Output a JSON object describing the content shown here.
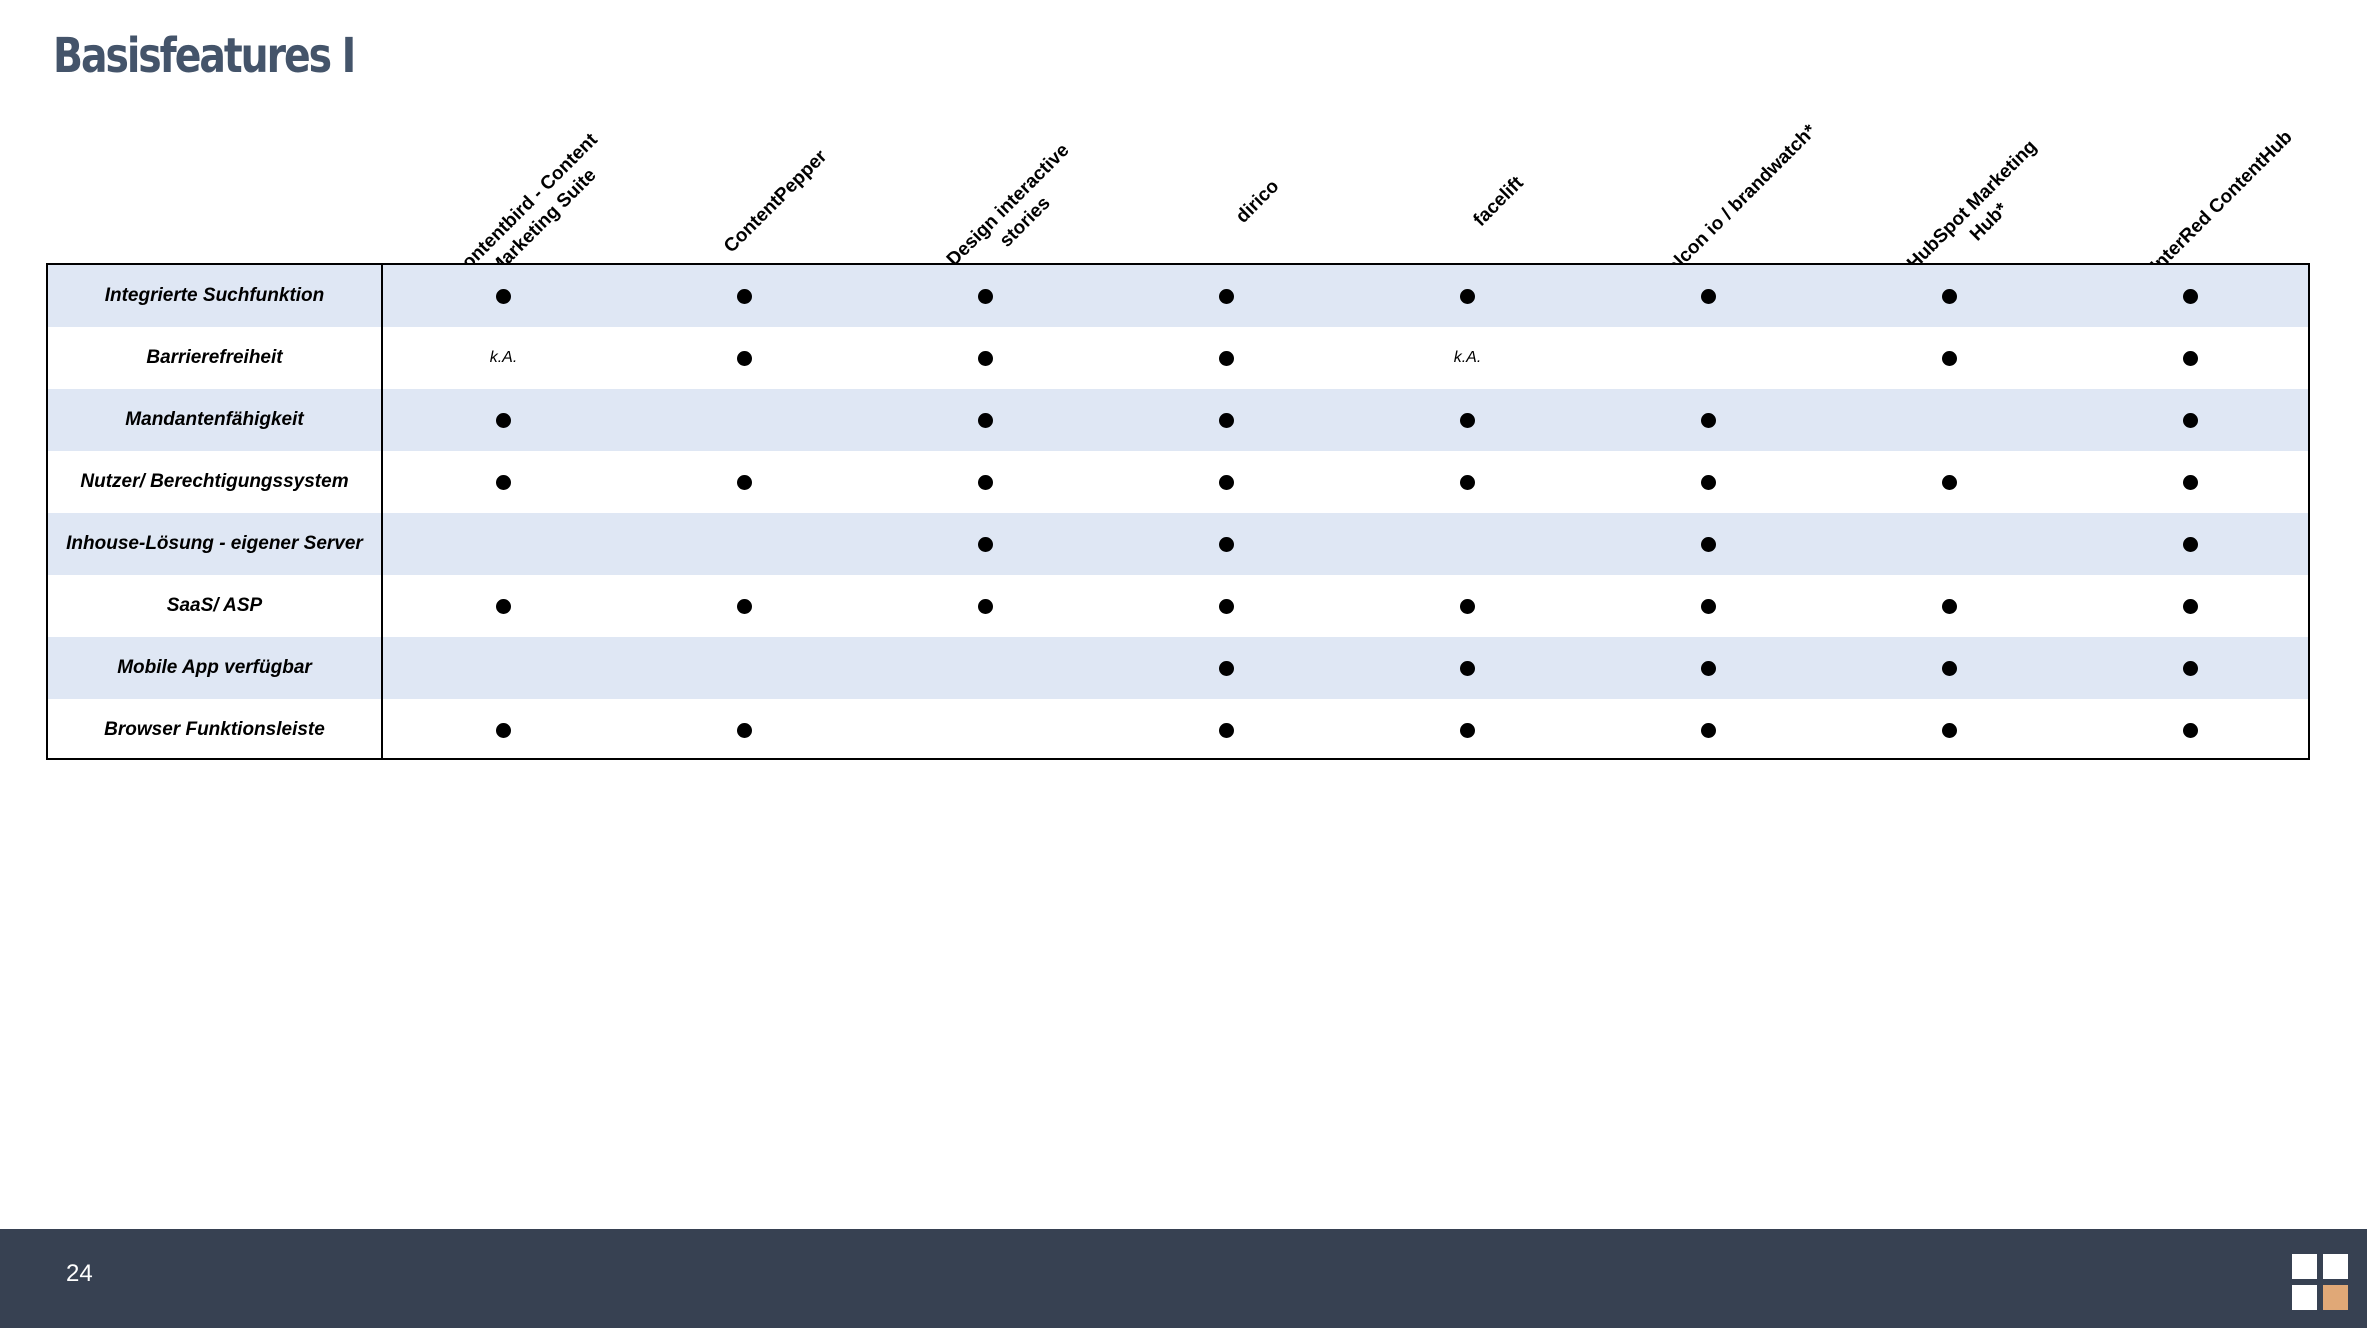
{
  "title": "Basisfeatures I",
  "columns": [
    "contentbird - Content Marketing Suite",
    "ContentPepper",
    "Design interactive stories",
    "dirico",
    "facelift",
    "falcon io / brandwatch*",
    "HubSpot Marketing Hub*",
    "InterRed ContentHub"
  ],
  "rows": [
    {
      "label": "Integrierte Suchfunktion",
      "cells": [
        "●",
        "●",
        "●",
        "●",
        "●",
        "●",
        "●",
        "●"
      ]
    },
    {
      "label": "Barrierefreiheit",
      "cells": [
        "k.A.",
        "●",
        "●",
        "●",
        "k.A.",
        "",
        "●",
        "●"
      ]
    },
    {
      "label": "Mandantenfähigkeit",
      "cells": [
        "●",
        "",
        "●",
        "●",
        "●",
        "●",
        "",
        "●"
      ]
    },
    {
      "label": "Nutzer/ Berechtigungssystem",
      "cells": [
        "●",
        "●",
        "●",
        "●",
        "●",
        "●",
        "●",
        "●"
      ]
    },
    {
      "label": "Inhouse-Lösung - eigener Server",
      "cells": [
        "",
        "",
        "●",
        "●",
        "",
        "●",
        "",
        "●"
      ]
    },
    {
      "label": "SaaS/ ASP",
      "cells": [
        "●",
        "●",
        "●",
        "●",
        "●",
        "●",
        "●",
        "●"
      ]
    },
    {
      "label": "Mobile App verfügbar",
      "cells": [
        "",
        "",
        "",
        "●",
        "●",
        "●",
        "●",
        "●"
      ]
    },
    {
      "label": "Browser Funktionsleiste",
      "cells": [
        "●",
        "●",
        "",
        "●",
        "●",
        "●",
        "●",
        "●"
      ]
    }
  ],
  "footer": {
    "page_number": "24"
  },
  "colors": {
    "title": "#44546a",
    "row_shade": "#dfe7f4",
    "footer_bg": "#374152",
    "logo_white": "#ffffff",
    "logo_accent": "#e0a877"
  }
}
